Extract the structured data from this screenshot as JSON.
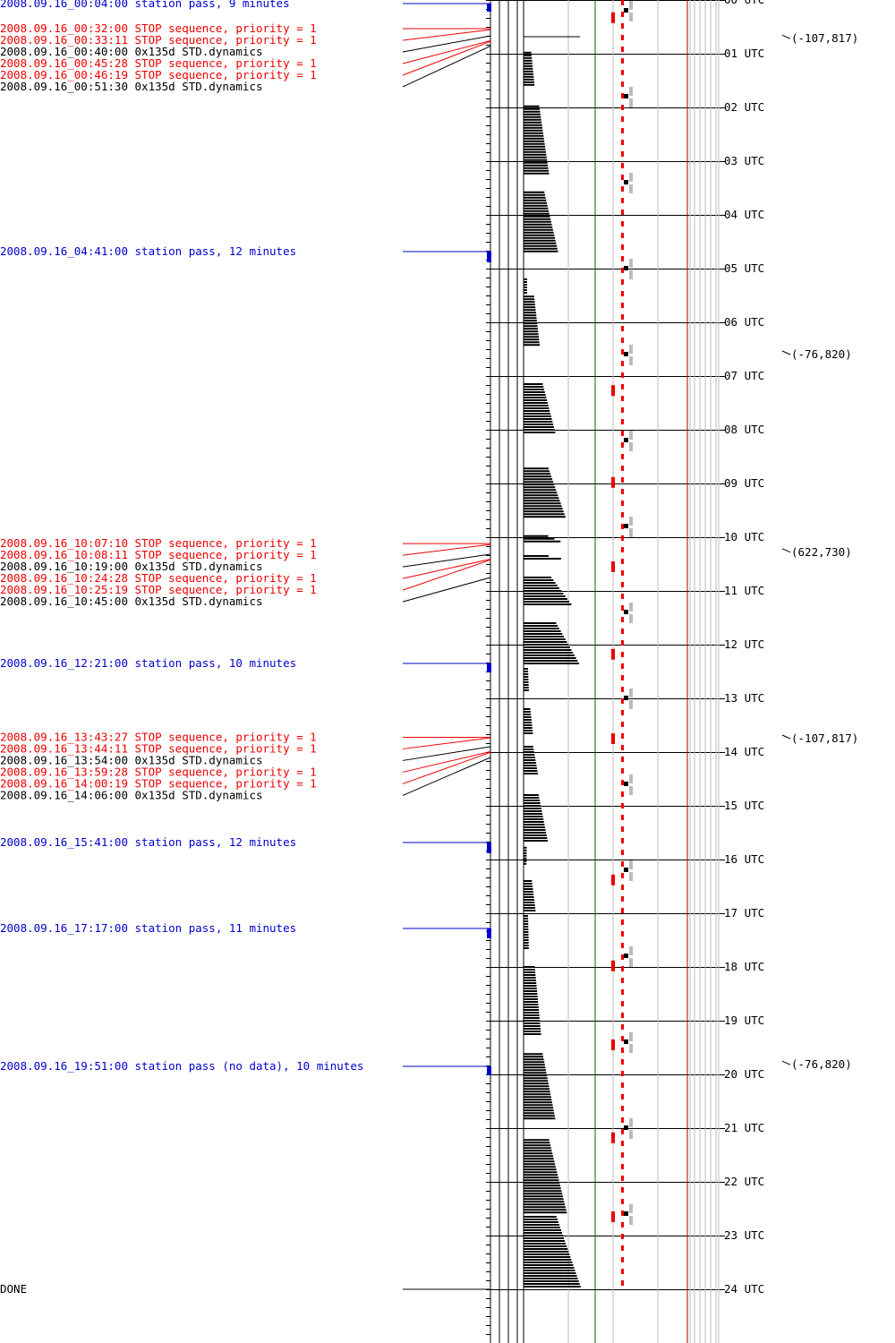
{
  "colors": {
    "blue": "#0000cc",
    "red": "#ee0000",
    "black": "#000000",
    "green": "#006600",
    "grey": "#bbbbbb",
    "darkred": "#aa0000"
  },
  "hour_labels": [
    "00 UTC",
    "01 UTC",
    "02 UTC",
    "03 UTC",
    "04 UTC",
    "05 UTC",
    "06 UTC",
    "07 UTC",
    "08 UTC",
    "09 UTC",
    "10 UTC",
    "11 UTC",
    "12 UTC",
    "13 UTC",
    "14 UTC",
    "15 UTC",
    "16 UTC",
    "17 UTC",
    "18 UTC",
    "19 UTC",
    "20 UTC",
    "21 UTC",
    "22 UTC",
    "23 UTC",
    "24 UTC"
  ],
  "events": [
    {
      "text": "2008.09.16_00:04:00 station pass, 9 minutes",
      "kind": "pass",
      "time_h": 0.067,
      "dur_min": 9
    },
    {
      "text": "2008.09.16_00:32:00 STOP sequence, priority = 1",
      "kind": "stop",
      "time_h": 0.533
    },
    {
      "text": "2008.09.16_00:33:11 STOP sequence, priority = 1",
      "kind": "stop",
      "time_h": 0.553
    },
    {
      "text": "2008.09.16_00:40:00 0x135d STD.dynamics",
      "kind": "cmd",
      "time_h": 0.667
    },
    {
      "text": "2008.09.16_00:45:28 STOP sequence, priority = 1",
      "kind": "stop",
      "time_h": 0.758
    },
    {
      "text": "2008.09.16_00:46:19 STOP sequence, priority = 1",
      "kind": "stop",
      "time_h": 0.772
    },
    {
      "text": "2008.09.16_00:51:30 0x135d STD.dynamics",
      "kind": "cmd",
      "time_h": 0.858
    },
    {
      "text": "2008.09.16_04:41:00 station pass, 12 minutes",
      "kind": "pass",
      "time_h": 4.683,
      "dur_min": 12
    },
    {
      "text": "2008.09.16_10:07:10 STOP sequence, priority = 1",
      "kind": "stop",
      "time_h": 10.119
    },
    {
      "text": "2008.09.16_10:08:11 STOP sequence, priority = 1",
      "kind": "stop",
      "time_h": 10.136
    },
    {
      "text": "2008.09.16_10:19:00 0x135d STD.dynamics",
      "kind": "cmd",
      "time_h": 10.317
    },
    {
      "text": "2008.09.16_10:24:28 STOP sequence, priority = 1",
      "kind": "stop",
      "time_h": 10.408
    },
    {
      "text": "2008.09.16_10:25:19 STOP sequence, priority = 1",
      "kind": "stop",
      "time_h": 10.422
    },
    {
      "text": "2008.09.16_10:45:00 0x135d STD.dynamics",
      "kind": "cmd",
      "time_h": 10.75
    },
    {
      "text": "2008.09.16_12:21:00 station pass, 10 minutes",
      "kind": "pass",
      "time_h": 12.35,
      "dur_min": 10
    },
    {
      "text": "2008.09.16_13:43:27 STOP sequence, priority = 1",
      "kind": "stop",
      "time_h": 13.724
    },
    {
      "text": "2008.09.16_13:44:11 STOP sequence, priority = 1",
      "kind": "stop",
      "time_h": 13.736
    },
    {
      "text": "2008.09.16_13:54:00 0x135d STD.dynamics",
      "kind": "cmd",
      "time_h": 13.9
    },
    {
      "text": "2008.09.16_13:59:28 STOP sequence, priority = 1",
      "kind": "stop",
      "time_h": 13.991
    },
    {
      "text": "2008.09.16_14:00:19 STOP sequence, priority = 1",
      "kind": "stop",
      "time_h": 14.005
    },
    {
      "text": "2008.09.16_14:06:00 0x135d STD.dynamics",
      "kind": "cmd",
      "time_h": 14.1
    },
    {
      "text": "2008.09.16_15:41:00 station pass, 12 minutes",
      "kind": "pass",
      "time_h": 15.683,
      "dur_min": 12
    },
    {
      "text": "2008.09.16_17:17:00 station pass, 11 minutes",
      "kind": "pass",
      "time_h": 17.283,
      "dur_min": 11
    },
    {
      "text": "2008.09.16_19:51:00 station pass (no data), 10 minutes",
      "kind": "pass",
      "time_h": 19.85,
      "dur_min": 10
    },
    {
      "text": "DONE",
      "kind": "done",
      "time_h": 24.0
    }
  ],
  "coord_labels": [
    {
      "text": "(-107,817)",
      "time_h": 0.72
    },
    {
      "text": "(-76,820)",
      "time_h": 6.6
    },
    {
      "text": "(622,730)",
      "time_h": 10.28
    },
    {
      "text": "(-107,817)",
      "time_h": 13.75
    },
    {
      "text": "(-76,820)",
      "time_h": 19.82
    }
  ],
  "data_runs": [
    {
      "start_h": 0.98,
      "end_h": 1.6,
      "max_rel": 0.19
    },
    {
      "start_h": 1.98,
      "end_h": 3.25,
      "max_rel": 0.44
    },
    {
      "start_h": 3.58,
      "end_h": 4.72,
      "max_rel": 0.6
    },
    {
      "start_h": 5.2,
      "end_h": 5.45,
      "max_rel": 0.06
    },
    {
      "start_h": 5.52,
      "end_h": 6.45,
      "max_rel": 0.28
    },
    {
      "start_h": 7.15,
      "end_h": 8.07,
      "max_rel": 0.55
    },
    {
      "start_h": 8.72,
      "end_h": 9.65,
      "max_rel": 0.73
    },
    {
      "start_h": 9.98,
      "end_h": 10.12,
      "max_rel": 0.72
    },
    {
      "start_h": 10.35,
      "end_h": 10.42,
      "max_rel": 0.73
    },
    {
      "start_h": 10.75,
      "end_h": 11.25,
      "max_rel": 0.82
    },
    {
      "start_h": 11.6,
      "end_h": 12.38,
      "max_rel": 0.97
    },
    {
      "start_h": 12.45,
      "end_h": 12.85,
      "max_rel": 0.09
    },
    {
      "start_h": 13.2,
      "end_h": 13.65,
      "max_rel": 0.16
    },
    {
      "start_h": 13.9,
      "end_h": 14.42,
      "max_rel": 0.25
    },
    {
      "start_h": 14.8,
      "end_h": 15.68,
      "max_rel": 0.42
    },
    {
      "start_h": 15.78,
      "end_h": 16.08,
      "max_rel": 0.05
    },
    {
      "start_h": 16.4,
      "end_h": 16.98,
      "max_rel": 0.21
    },
    {
      "start_h": 17.05,
      "end_h": 17.68,
      "max_rel": 0.09
    },
    {
      "start_h": 18.0,
      "end_h": 19.25,
      "max_rel": 0.3
    },
    {
      "start_h": 19.62,
      "end_h": 20.85,
      "max_rel": 0.55
    },
    {
      "start_h": 21.22,
      "end_h": 22.6,
      "max_rel": 0.75
    },
    {
      "start_h": 22.65,
      "end_h": 23.95,
      "max_rel": 0.98
    }
  ],
  "orbit_period_h": 1.6,
  "red_marks_h": [
    0.33,
    7.27,
    8.98,
    10.55,
    12.18,
    13.75,
    16.38,
    17.98,
    19.45,
    21.18,
    22.65
  ]
}
